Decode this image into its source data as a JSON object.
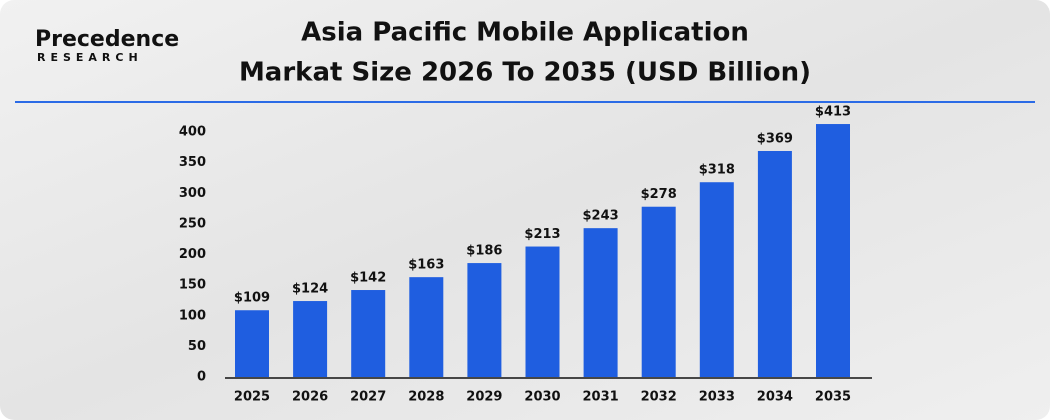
{
  "logo": {
    "name": "Precedence",
    "sub": "RESEARCH"
  },
  "chart_data": {
    "type": "bar",
    "title": [
      "Asia Pacific Mobile Application",
      "Markat Size 2026 To 2035 (USD Billion)"
    ],
    "categories": [
      "2025",
      "2026",
      "2027",
      "2028",
      "2029",
      "2030",
      "2031",
      "2032",
      "2033",
      "2034",
      "2035"
    ],
    "values": [
      109,
      124,
      142,
      163,
      186,
      213,
      243,
      278,
      318,
      369,
      413
    ],
    "value_labels": [
      "$109",
      "$124",
      "$142",
      "$163",
      "$186",
      "$213",
      "$243",
      "$278",
      "$318",
      "$369",
      "$413"
    ],
    "color": "#1f5ee0",
    "ylim": [
      0,
      420
    ],
    "yticks": [
      0,
      50,
      100,
      150,
      200,
      250,
      300,
      350,
      400
    ],
    "grid": false
  }
}
